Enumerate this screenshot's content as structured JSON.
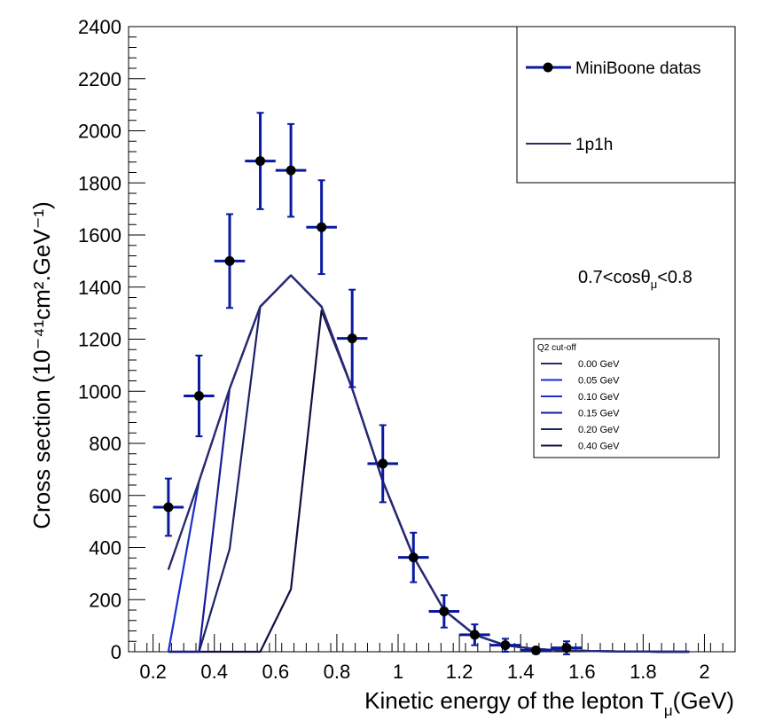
{
  "chart_data": {
    "type": "scatter",
    "xlabel": "Kinetic energy of the lepton T",
    "xlabel_sub": "μ",
    "xlabel_unit": "(GeV)",
    "ylabel": "Cross section",
    "ylabel_unit": "(10⁻⁴¹cm².GeV⁻¹)",
    "xlim": [
      0.12,
      2.1
    ],
    "ylim": [
      0,
      2400
    ],
    "xticks": [
      0.2,
      0.4,
      0.6,
      0.8,
      1,
      1.2,
      1.4,
      1.6,
      1.8,
      2
    ],
    "xtick_labels": [
      "0.2",
      "0.4",
      "0.6",
      "0.8",
      "1",
      "1.2",
      "1.4",
      "1.6",
      "1.8",
      "2"
    ],
    "yticks": [
      0,
      200,
      400,
      600,
      800,
      1000,
      1200,
      1400,
      1600,
      1800,
      2000,
      2200,
      2400
    ],
    "ytick_labels": [
      "0",
      "200",
      "400",
      "600",
      "800",
      "1000",
      "1200",
      "1400",
      "1600",
      "1800",
      "2000",
      "2200",
      "2400"
    ],
    "annotation": "0.7<cosθ",
    "annotation_sub": "μ",
    "annotation_tail": "<0.8",
    "grid": false,
    "legend_main": {
      "placement": "top-right",
      "entries": [
        {
          "label": "MiniBoone datas",
          "kind": "marker-line",
          "color": "#0a1aa0"
        },
        {
          "label": "1p1h",
          "kind": "line",
          "color": "#2a2a6a"
        }
      ]
    },
    "legend_cutoff": {
      "title": "Q2 cut-off",
      "placement": "right",
      "entries": [
        {
          "label": "0.00 GeV",
          "color": "#2a2a6a"
        },
        {
          "label": "0.05 GeV",
          "color": "#1a2ad8"
        },
        {
          "label": "0.10 GeV",
          "color": "#1a30c8"
        },
        {
          "label": "0.15 GeV",
          "color": "#1a1a96"
        },
        {
          "label": "0.20 GeV",
          "color": "#1c2266"
        },
        {
          "label": "0.40 GeV",
          "color": "#101040"
        }
      ]
    },
    "data_points": {
      "name": "MiniBoone datas",
      "color": "#0a1aa0",
      "x": [
        0.25,
        0.35,
        0.45,
        0.55,
        0.65,
        0.75,
        0.85,
        0.95,
        1.05,
        1.15,
        1.25,
        1.35,
        1.45,
        1.55
      ],
      "y": [
        555,
        982,
        1500,
        1884,
        1848,
        1630,
        1203,
        722,
        362,
        155,
        65,
        25,
        5,
        15
      ],
      "yerr": [
        110,
        155,
        180,
        185,
        178,
        180,
        187,
        148,
        95,
        62,
        40,
        25,
        12,
        25
      ],
      "xerr": 0.05
    },
    "series": [
      {
        "name": "1p1h",
        "color": "#2a2a6a",
        "x": [
          0.25,
          0.35,
          0.45,
          0.55,
          0.65,
          0.75,
          0.85,
          0.95,
          1.05,
          1.15,
          1.25,
          1.35,
          1.45,
          1.55,
          1.65,
          1.75,
          1.85,
          1.95
        ],
        "y": [
          315,
          655,
          1010,
          1325,
          1445,
          1325,
          1010,
          655,
          365,
          160,
          65,
          25,
          10,
          5,
          2,
          1,
          0,
          0
        ]
      },
      {
        "name": "0.05 GeV",
        "color": "#1a2ad8",
        "x": [
          0.25,
          0.35,
          0.45,
          0.55,
          0.65,
          0.75,
          0.85,
          0.95,
          1.05,
          1.15,
          1.25,
          1.35,
          1.45,
          1.55,
          1.65,
          1.75,
          1.85,
          1.95
        ],
        "y": [
          315,
          655,
          1010,
          1325,
          1445,
          1325,
          1010,
          655,
          365,
          160,
          65,
          25,
          10,
          5,
          2,
          1,
          0,
          0
        ]
      },
      {
        "name": "0.10 GeV",
        "color": "#1a30c8",
        "x": [
          0.25,
          0.35,
          0.45,
          0.55,
          0.65,
          0.75,
          0.85,
          0.95,
          1.05,
          1.15,
          1.25,
          1.35,
          1.45,
          1.55,
          1.65,
          1.75,
          1.85,
          1.95
        ],
        "y": [
          0,
          655,
          1010,
          1325,
          1445,
          1325,
          1010,
          655,
          365,
          160,
          65,
          25,
          10,
          5,
          2,
          1,
          0,
          0
        ]
      },
      {
        "name": "0.15 GeV",
        "color": "#1a1a96",
        "x": [
          0.25,
          0.35,
          0.45,
          0.55,
          0.65,
          0.75,
          0.85,
          0.95,
          1.05,
          1.15,
          1.25,
          1.35,
          1.45,
          1.55,
          1.65,
          1.75,
          1.85,
          1.95
        ],
        "y": [
          0,
          0,
          1010,
          1325,
          1445,
          1325,
          1010,
          655,
          365,
          160,
          65,
          25,
          10,
          5,
          2,
          1,
          0,
          0
        ]
      },
      {
        "name": "0.20 GeV",
        "color": "#1c2266",
        "x": [
          0.25,
          0.35,
          0.45,
          0.55,
          0.65,
          0.75,
          0.85,
          0.95,
          1.05,
          1.15,
          1.25,
          1.35,
          1.45,
          1.55,
          1.65,
          1.75,
          1.85,
          1.95
        ],
        "y": [
          0,
          0,
          395,
          1325,
          1445,
          1325,
          1010,
          655,
          365,
          160,
          65,
          25,
          10,
          5,
          2,
          1,
          0,
          0
        ]
      },
      {
        "name": "0.40 GeV",
        "color": "#101040",
        "x": [
          0.25,
          0.35,
          0.45,
          0.55,
          0.65,
          0.75,
          0.85,
          0.95,
          1.05,
          1.15,
          1.25,
          1.35,
          1.45,
          1.55,
          1.65,
          1.75,
          1.85,
          1.95
        ],
        "y": [
          0,
          0,
          0,
          0,
          240,
          1310,
          1010,
          655,
          365,
          160,
          65,
          25,
          10,
          5,
          2,
          1,
          0,
          0
        ]
      }
    ]
  }
}
